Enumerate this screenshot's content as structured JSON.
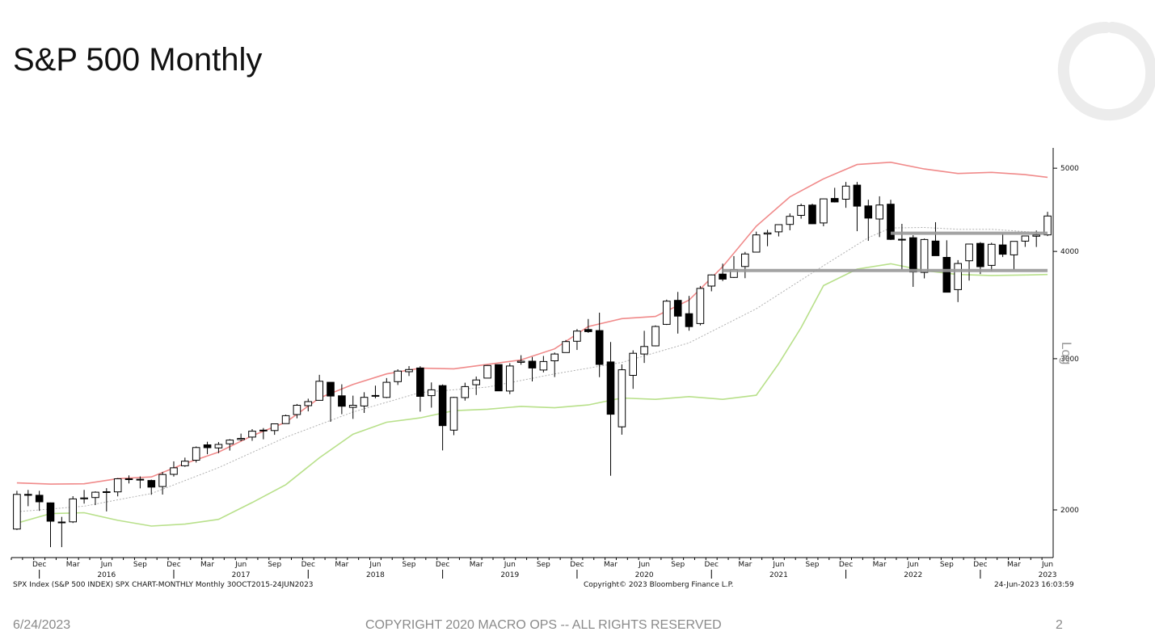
{
  "slide": {
    "title": "S&P 500 Monthly",
    "footer_date": "6/24/2023",
    "footer_copyright": "COPYRIGHT 2020 MACRO OPS -- ALL RIGHTS RESERVED",
    "page_number": "2"
  },
  "chart_meta": {
    "left_text": "SPX Index (S&P 500 INDEX) SPX CHART-MONTHLY  Monthly 30OCT2015-24JUN2023",
    "center_text": "Copyright© 2023 Bloomberg Finance L.P.",
    "right_text": "24-Jun-2023 16:03:59",
    "scale_label": "Log"
  },
  "colors": {
    "upper_band": "#f08a8a",
    "lower_band": "#b8e08a",
    "moving_average": "#b0b0b0",
    "support_lines": "#9a9a9a",
    "candle_up_fill": "#ffffff",
    "candle_down_fill": "#000000"
  },
  "chart_data": {
    "type": "candlestick",
    "y_scale": "log",
    "ylim": [
      1760,
      5280
    ],
    "y_ticks": [
      2000,
      3000,
      4000,
      5000
    ],
    "x_ticks_month": [
      "Dec",
      "Mar",
      "Jun",
      "Sep",
      "Dec",
      "Mar",
      "Jun",
      "Sep",
      "Dec",
      "Mar",
      "Jun",
      "Sep",
      "Dec",
      "Mar",
      "Jun",
      "Sep",
      "Dec",
      "Mar",
      "Jun",
      "Sep",
      "Dec",
      "Mar",
      "Jun",
      "Sep",
      "Dec",
      "Mar",
      "Jun",
      "Sep",
      "Dec",
      "Mar",
      "Jun"
    ],
    "x_ticks_year": [
      "2016",
      "2017",
      "2018",
      "2019",
      "2020",
      "2021",
      "2022",
      "2023"
    ],
    "months": [
      "Oct 2015",
      "Nov 2015",
      "Dec 2015",
      "Jan 2016",
      "Feb 2016",
      "Mar 2016",
      "Apr 2016",
      "May 2016",
      "Jun 2016",
      "Jul 2016",
      "Aug 2016",
      "Sep 2016",
      "Oct 2016",
      "Nov 2016",
      "Dec 2016",
      "Jan 2017",
      "Feb 2017",
      "Mar 2017",
      "Apr 2017",
      "May 2017",
      "Jun 2017",
      "Jul 2017",
      "Aug 2017",
      "Sep 2017",
      "Oct 2017",
      "Nov 2017",
      "Dec 2017",
      "Jan 2018",
      "Feb 2018",
      "Mar 2018",
      "Apr 2018",
      "May 2018",
      "Jun 2018",
      "Jul 2018",
      "Aug 2018",
      "Sep 2018",
      "Oct 2018",
      "Nov 2018",
      "Dec 2018",
      "Jan 2019",
      "Feb 2019",
      "Mar 2019",
      "Apr 2019",
      "May 2019",
      "Jun 2019",
      "Jul 2019",
      "Aug 2019",
      "Sep 2019",
      "Oct 2019",
      "Nov 2019",
      "Dec 2019",
      "Jan 2020",
      "Feb 2020",
      "Mar 2020",
      "Apr 2020",
      "May 2020",
      "Jun 2020",
      "Jul 2020",
      "Aug 2020",
      "Sep 2020",
      "Oct 2020",
      "Nov 2020",
      "Dec 2020",
      "Jan 2021",
      "Feb 2021",
      "Mar 2021",
      "Apr 2021",
      "May 2021",
      "Jun 2021",
      "Jul 2021",
      "Aug 2021",
      "Sep 2021",
      "Oct 2021",
      "Nov 2021",
      "Dec 2021",
      "Jan 2022",
      "Feb 2022",
      "Mar 2022",
      "Apr 2022",
      "May 2022",
      "Jun 2022",
      "Jul 2022",
      "Aug 2022",
      "Sep 2022",
      "Oct 2022",
      "Nov 2022",
      "Dec 2022",
      "Jan 2023",
      "Feb 2023",
      "Mar 2023",
      "Apr 2023",
      "May 2023",
      "Jun 2023"
    ],
    "ohlc": [
      [
        1900,
        2105,
        1895,
        2085
      ],
      [
        2085,
        2110,
        2020,
        2080
      ],
      [
        2080,
        2105,
        1995,
        2044
      ],
      [
        2038,
        2040,
        1810,
        1940
      ],
      [
        1936,
        1963,
        1810,
        1932
      ],
      [
        1937,
        2075,
        1931,
        2060
      ],
      [
        2060,
        2110,
        2034,
        2065
      ],
      [
        2067,
        2102,
        2026,
        2097
      ],
      [
        2100,
        2120,
        1992,
        2099
      ],
      [
        2099,
        2178,
        2074,
        2174
      ],
      [
        2174,
        2194,
        2147,
        2171
      ],
      [
        2171,
        2188,
        2119,
        2168
      ],
      [
        2164,
        2169,
        2083,
        2126
      ],
      [
        2129,
        2214,
        2084,
        2199
      ],
      [
        2200,
        2278,
        2187,
        2239
      ],
      [
        2251,
        2301,
        2245,
        2279
      ],
      [
        2285,
        2371,
        2271,
        2364
      ],
      [
        2381,
        2401,
        2322,
        2363
      ],
      [
        2362,
        2399,
        2329,
        2384
      ],
      [
        2388,
        2418,
        2345,
        2412
      ],
      [
        2415,
        2454,
        2405,
        2423
      ],
      [
        2431,
        2484,
        2407,
        2470
      ],
      [
        2477,
        2491,
        2417,
        2472
      ],
      [
        2474,
        2519,
        2446,
        2519
      ],
      [
        2521,
        2582,
        2520,
        2575
      ],
      [
        2583,
        2657,
        2557,
        2648
      ],
      [
        2645,
        2695,
        2605,
        2674
      ],
      [
        2683,
        2873,
        2683,
        2824
      ],
      [
        2816,
        2790,
        2533,
        2714
      ],
      [
        2716,
        2801,
        2585,
        2641
      ],
      [
        2633,
        2717,
        2553,
        2648
      ],
      [
        2643,
        2742,
        2594,
        2705
      ],
      [
        2718,
        2791,
        2698,
        2718
      ],
      [
        2704,
        2848,
        2699,
        2816
      ],
      [
        2821,
        2916,
        2796,
        2902
      ],
      [
        2897,
        2941,
        2864,
        2914
      ],
      [
        2926,
        2940,
        2603,
        2712
      ],
      [
        2717,
        2815,
        2631,
        2760
      ],
      [
        2791,
        2800,
        2346,
        2507
      ],
      [
        2477,
        2708,
        2444,
        2704
      ],
      [
        2703,
        2813,
        2681,
        2784
      ],
      [
        2798,
        2860,
        2722,
        2834
      ],
      [
        2848,
        2949,
        2848,
        2946
      ],
      [
        2953,
        2954,
        2751,
        2752
      ],
      [
        2751,
        2964,
        2728,
        2942
      ],
      [
        2971,
        3028,
        2952,
        2980
      ],
      [
        2980,
        3014,
        2823,
        2926
      ],
      [
        2910,
        3022,
        2892,
        2977
      ],
      [
        2983,
        3050,
        2856,
        3038
      ],
      [
        3050,
        3154,
        3050,
        3141
      ],
      [
        3144,
        3248,
        3071,
        3231
      ],
      [
        3244,
        3337,
        3215,
        3226
      ],
      [
        3235,
        3394,
        2855,
        2954
      ],
      [
        2974,
        3137,
        2192,
        2585
      ],
      [
        2499,
        2955,
        2447,
        2912
      ],
      [
        2869,
        3068,
        2767,
        3044
      ],
      [
        3038,
        3233,
        2966,
        3100
      ],
      [
        3105,
        3280,
        3101,
        3271
      ],
      [
        3289,
        3515,
        3284,
        3500
      ],
      [
        3508,
        3588,
        3209,
        3363
      ],
      [
        3385,
        3550,
        3234,
        3270
      ],
      [
        3296,
        3646,
        3280,
        3622
      ],
      [
        3645,
        3760,
        3594,
        3756
      ],
      [
        3764,
        3871,
        3694,
        3714
      ],
      [
        3731,
        3950,
        3725,
        3811
      ],
      [
        3842,
        3995,
        3723,
        3973
      ],
      [
        3992,
        4218,
        3992,
        4181
      ],
      [
        4191,
        4238,
        4056,
        4204
      ],
      [
        4216,
        4302,
        4164,
        4298
      ],
      [
        4301,
        4429,
        4233,
        4395
      ],
      [
        4406,
        4546,
        4367,
        4523
      ],
      [
        4529,
        4546,
        4305,
        4308
      ],
      [
        4317,
        4608,
        4279,
        4605
      ],
      [
        4610,
        4744,
        4561,
        4567
      ],
      [
        4602,
        4819,
        4496,
        4766
      ],
      [
        4778,
        4819,
        4223,
        4516
      ],
      [
        4519,
        4595,
        4115,
        4374
      ],
      [
        4363,
        4637,
        4157,
        4530
      ],
      [
        4540,
        4594,
        4124,
        4132
      ],
      [
        4130,
        4307,
        3810,
        4132
      ],
      [
        4149,
        4178,
        3637,
        3785
      ],
      [
        3781,
        4141,
        3721,
        4130
      ],
      [
        4113,
        4326,
        3955,
        3955
      ],
      [
        3937,
        4121,
        3584,
        3586
      ],
      [
        3610,
        3908,
        3492,
        3872
      ],
      [
        3901,
        4080,
        3699,
        4080
      ],
      [
        4087,
        4101,
        3764,
        3840
      ],
      [
        3853,
        4094,
        3795,
        4077
      ],
      [
        4070,
        4195,
        3940,
        3970
      ],
      [
        3963,
        4110,
        3809,
        4109
      ],
      [
        4112,
        4170,
        4049,
        4169
      ],
      [
        4166,
        4231,
        4048,
        4180
      ],
      [
        4181,
        4448,
        4168,
        4398
      ]
    ],
    "upper_band": [
      [
        0,
        2150
      ],
      [
        3,
        2143
      ],
      [
        6,
        2145
      ],
      [
        9,
        2175
      ],
      [
        12,
        2185
      ],
      [
        15,
        2265
      ],
      [
        18,
        2335
      ],
      [
        21,
        2440
      ],
      [
        24,
        2530
      ],
      [
        27,
        2700
      ],
      [
        30,
        2800
      ],
      [
        33,
        2880
      ],
      [
        36,
        2925
      ],
      [
        39,
        2920
      ],
      [
        42,
        2955
      ],
      [
        45,
        2990
      ],
      [
        48,
        3080
      ],
      [
        51,
        3270
      ],
      [
        54,
        3340
      ],
      [
        57,
        3360
      ],
      [
        60,
        3510
      ],
      [
        63,
        3840
      ],
      [
        66,
        4280
      ],
      [
        69,
        4630
      ],
      [
        72,
        4860
      ],
      [
        75,
        5050
      ],
      [
        78,
        5080
      ],
      [
        81,
        4990
      ],
      [
        84,
        4930
      ],
      [
        87,
        4945
      ],
      [
        90,
        4915
      ],
      [
        92,
        4880
      ]
    ],
    "moving_average": [
      [
        0,
        1990
      ],
      [
        6,
        2020
      ],
      [
        12,
        2090
      ],
      [
        18,
        2240
      ],
      [
        24,
        2430
      ],
      [
        30,
        2600
      ],
      [
        36,
        2740
      ],
      [
        42,
        2780
      ],
      [
        48,
        2880
      ],
      [
        54,
        2970
      ],
      [
        60,
        3130
      ],
      [
        66,
        3430
      ],
      [
        72,
        3850
      ],
      [
        76,
        4150
      ],
      [
        78,
        4260
      ],
      [
        81,
        4265
      ],
      [
        84,
        4245
      ],
      [
        87,
        4245
      ],
      [
        90,
        4218
      ],
      [
        92,
        4200
      ]
    ],
    "lower_band": [
      [
        0,
        1930
      ],
      [
        3,
        1980
      ],
      [
        6,
        1985
      ],
      [
        9,
        1945
      ],
      [
        12,
        1915
      ],
      [
        15,
        1925
      ],
      [
        18,
        1950
      ],
      [
        21,
        2040
      ],
      [
        24,
        2140
      ],
      [
        27,
        2300
      ],
      [
        30,
        2450
      ],
      [
        33,
        2530
      ],
      [
        36,
        2560
      ],
      [
        39,
        2610
      ],
      [
        42,
        2620
      ],
      [
        45,
        2640
      ],
      [
        48,
        2630
      ],
      [
        51,
        2650
      ],
      [
        54,
        2700
      ],
      [
        57,
        2690
      ],
      [
        60,
        2710
      ],
      [
        63,
        2690
      ],
      [
        66,
        2720
      ],
      [
        68,
        2960
      ],
      [
        70,
        3260
      ],
      [
        72,
        3650
      ],
      [
        75,
        3815
      ],
      [
        78,
        3870
      ],
      [
        81,
        3800
      ],
      [
        84,
        3760
      ],
      [
        87,
        3750
      ],
      [
        90,
        3755
      ],
      [
        92,
        3760
      ]
    ],
    "support_levels": [
      {
        "value": 3800,
        "start": 63,
        "end": 92
      },
      {
        "value": 4200,
        "start": 78,
        "end": 92
      }
    ]
  }
}
